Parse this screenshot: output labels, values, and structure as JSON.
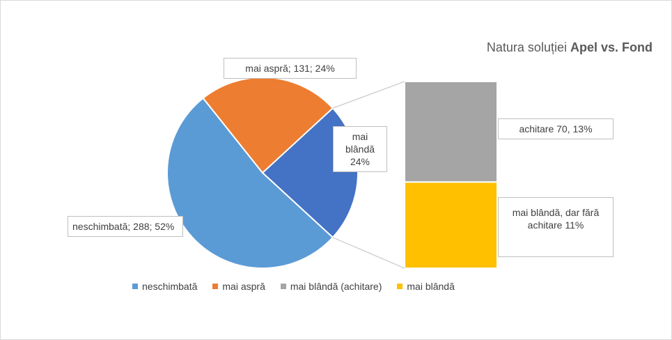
{
  "chart_data": {
    "type": "bar-of-pie",
    "title": [
      "Natura soluției",
      "Apel vs. Fond"
    ],
    "names": [
      "neschimbată",
      "mai aspră",
      "achitare",
      "mai blândă, dar fără achitare"
    ],
    "values": [
      288,
      131,
      70,
      60
    ],
    "colors": [
      "#5b9bd5",
      "#ed7d31",
      "#a5a5a5",
      "#ffc000"
    ],
    "other_color": "#4472c4",
    "value_labels": [
      "neschimbată; 288; 52%",
      "mai aspră; 131; 24%",
      "achitare 70, 13%",
      "mai blândă, dar fără achitare 11%"
    ],
    "other_label": "mai blândă 24%",
    "legend": [
      {
        "name": "neschimbată",
        "color": "#5b9bd5"
      },
      {
        "name": "mai aspră",
        "color": "#ed7d31"
      },
      {
        "name": "mai blândă (achitare)",
        "color": "#a5a5a5"
      },
      {
        "name": "mai blândă",
        "color": "#ffc000"
      }
    ]
  }
}
